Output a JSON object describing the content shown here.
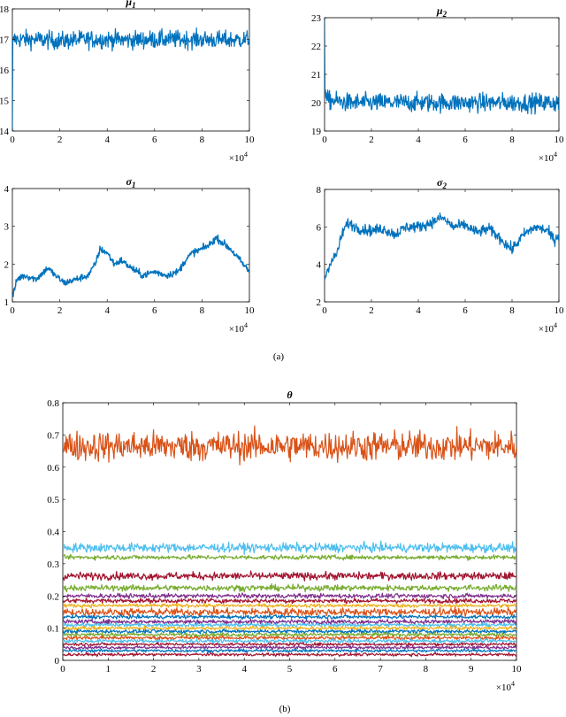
{
  "captions": {
    "a": "(a)",
    "b": "(b)"
  },
  "chart_data": [
    {
      "type": "line",
      "title": "μ",
      "title_sub": "1",
      "xlim": [
        0,
        100000
      ],
      "ylim": [
        14,
        18
      ],
      "xticks": [
        "0",
        "2",
        "4",
        "6",
        "8",
        "10"
      ],
      "yticks": [
        "14",
        "15",
        "16",
        "17",
        "18"
      ],
      "x_multiplier": "×10",
      "x_multiplier_exp": "4",
      "color": "#0072BD",
      "series": [
        {
          "x": [
            0,
            0,
            800,
            10000,
            20000,
            30000,
            40000,
            50000,
            60000,
            70000,
            80000,
            90000,
            100000
          ],
          "y": [
            14.0,
            16.8,
            17.0,
            17.0,
            16.95,
            17.0,
            17.0,
            16.98,
            17.0,
            17.0,
            17.0,
            16.98,
            17.0
          ],
          "band": 0.25
        }
      ]
    },
    {
      "type": "line",
      "title": "μ",
      "title_sub": "2",
      "xlim": [
        0,
        100000
      ],
      "ylim": [
        19,
        23
      ],
      "xticks": [
        "0",
        "2",
        "4",
        "6",
        "8",
        "10"
      ],
      "yticks": [
        "19",
        "20",
        "21",
        "22",
        "23"
      ],
      "x_multiplier": "×10",
      "x_multiplier_exp": "4",
      "color": "#0072BD",
      "series": [
        {
          "x": [
            0,
            0,
            800,
            10000,
            20000,
            30000,
            40000,
            50000,
            60000,
            70000,
            80000,
            90000,
            100000
          ],
          "y": [
            23.0,
            20.8,
            20.1,
            20.0,
            20.0,
            20.0,
            20.0,
            20.0,
            20.0,
            20.0,
            20.0,
            20.0,
            20.0
          ],
          "band": 0.28
        }
      ]
    },
    {
      "type": "line",
      "title": "σ",
      "title_sub": "1",
      "xlim": [
        0,
        100000
      ],
      "ylim": [
        1,
        4
      ],
      "xticks": [
        "0",
        "2",
        "4",
        "6",
        "8",
        "10"
      ],
      "yticks": [
        "1",
        "2",
        "3",
        "4"
      ],
      "x_multiplier": "×10",
      "x_multiplier_exp": "4",
      "color": "#0072BD",
      "series": [
        {
          "x": [
            0,
            2000,
            5000,
            10000,
            15000,
            18000,
            22000,
            27000,
            32000,
            35000,
            37000,
            40000,
            43000,
            46000,
            50000,
            55000,
            60000,
            65000,
            70000,
            73000,
            76000,
            80000,
            83000,
            86000,
            88000,
            92000,
            96000,
            100000
          ],
          "y": [
            1.1,
            1.6,
            1.7,
            1.6,
            1.9,
            1.7,
            1.5,
            1.6,
            1.7,
            2.0,
            2.4,
            2.3,
            2.0,
            2.1,
            1.9,
            1.7,
            1.8,
            1.7,
            1.8,
            2.1,
            2.3,
            2.4,
            2.5,
            2.7,
            2.6,
            2.4,
            2.1,
            1.8
          ],
          "band": 0.08
        }
      ]
    },
    {
      "type": "line",
      "title": "σ",
      "title_sub": "2",
      "xlim": [
        0,
        100000
      ],
      "ylim": [
        2,
        8
      ],
      "xticks": [
        "0",
        "2",
        "4",
        "6",
        "8",
        "10"
      ],
      "yticks": [
        "2",
        "4",
        "6",
        "8"
      ],
      "x_multiplier": "×10",
      "x_multiplier_exp": "4",
      "color": "#0072BD",
      "series": [
        {
          "x": [
            0,
            2000,
            5000,
            8000,
            10000,
            15000,
            20000,
            25000,
            30000,
            35000,
            40000,
            45000,
            50000,
            55000,
            60000,
            65000,
            70000,
            75000,
            78000,
            80000,
            85000,
            90000,
            95000,
            98000,
            100000
          ],
          "y": [
            3.2,
            4.0,
            4.5,
            5.8,
            6.2,
            5.9,
            5.8,
            5.9,
            5.6,
            6.0,
            6.0,
            6.2,
            6.5,
            6.0,
            6.1,
            5.7,
            5.9,
            5.4,
            5.0,
            4.8,
            5.6,
            6.0,
            5.8,
            5.3,
            5.6
          ],
          "band": 0.25
        }
      ]
    },
    {
      "type": "line",
      "title": "θ",
      "title_sub": "",
      "xlim": [
        0,
        100000
      ],
      "ylim": [
        0,
        0.8
      ],
      "xticks": [
        "0",
        "1",
        "2",
        "3",
        "4",
        "5",
        "6",
        "7",
        "8",
        "9",
        "10"
      ],
      "yticks": [
        "0",
        "0.1",
        "0.2",
        "0.3",
        "0.4",
        "0.5",
        "0.6",
        "0.7",
        "0.8"
      ],
      "x_multiplier": "×10",
      "x_multiplier_exp": "4",
      "series": [
        {
          "color": "#D95319",
          "center": 0.665,
          "band": 0.04
        },
        {
          "color": "#4DBEEE",
          "center": 0.35,
          "band": 0.012
        },
        {
          "color": "#77AC30",
          "center": 0.32,
          "band": 0.006
        },
        {
          "color": "#A2142F",
          "center": 0.262,
          "band": 0.01
        },
        {
          "color": "#77AC30",
          "center": 0.225,
          "band": 0.008
        },
        {
          "color": "#7E2F8E",
          "center": 0.2,
          "band": 0.006
        },
        {
          "color": "#A2142F",
          "center": 0.185,
          "band": 0.006
        },
        {
          "color": "#EDB120",
          "center": 0.17,
          "band": 0.005
        },
        {
          "color": "#D95319",
          "center": 0.15,
          "band": 0.01
        },
        {
          "color": "#0072BD",
          "center": 0.135,
          "band": 0.005
        },
        {
          "color": "#7E2F8E",
          "center": 0.12,
          "band": 0.006
        },
        {
          "color": "#4DBEEE",
          "center": 0.11,
          "band": 0.005
        },
        {
          "color": "#EDB120",
          "center": 0.1,
          "band": 0.005
        },
        {
          "color": "#0072BD",
          "center": 0.09,
          "band": 0.005
        },
        {
          "color": "#77AC30",
          "center": 0.08,
          "band": 0.005
        },
        {
          "color": "#D95319",
          "center": 0.07,
          "band": 0.005
        },
        {
          "color": "#4DBEEE",
          "center": 0.06,
          "band": 0.005
        },
        {
          "color": "#A2142F",
          "center": 0.05,
          "band": 0.004
        },
        {
          "color": "#7E2F8E",
          "center": 0.04,
          "band": 0.004
        },
        {
          "color": "#0072BD",
          "center": 0.03,
          "band": 0.004
        },
        {
          "color": "#A2142F",
          "center": 0.018,
          "band": 0.004
        }
      ]
    }
  ]
}
